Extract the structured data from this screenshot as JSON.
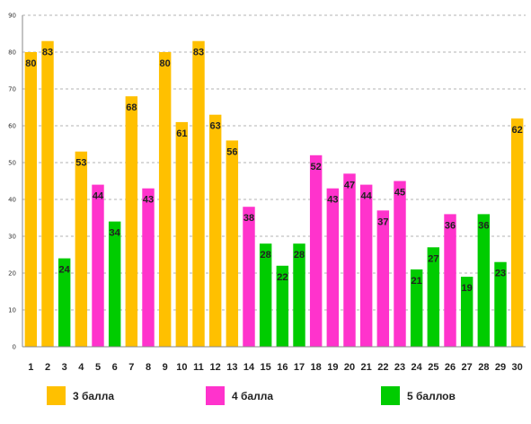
{
  "chart_data": {
    "type": "bar",
    "categories": [
      "1",
      "2",
      "3",
      "4",
      "5",
      "6",
      "7",
      "8",
      "9",
      "10",
      "11",
      "12",
      "13",
      "14",
      "15",
      "16",
      "17",
      "18",
      "19",
      "20",
      "21",
      "22",
      "23",
      "24",
      "25",
      "26",
      "27",
      "28",
      "29",
      "30"
    ],
    "values": [
      80,
      83,
      24,
      53,
      44,
      34,
      68,
      43,
      80,
      61,
      83,
      63,
      56,
      38,
      28,
      22,
      28,
      52,
      43,
      47,
      44,
      37,
      45,
      21,
      27,
      36,
      19,
      36,
      23,
      62
    ],
    "grades": [
      "3",
      "3",
      "5",
      "3",
      "4",
      "5",
      "3",
      "4",
      "3",
      "3",
      "3",
      "3",
      "3",
      "4",
      "5",
      "5",
      "5",
      "4",
      "4",
      "4",
      "4",
      "4",
      "4",
      "5",
      "5",
      "4",
      "5",
      "5",
      "5",
      "3"
    ],
    "ylim": [
      0,
      90
    ],
    "yticks": [
      0,
      10,
      20,
      30,
      40,
      50,
      60,
      70,
      80,
      90
    ],
    "grid": true,
    "legend_position": "bottom",
    "legend": [
      {
        "key": "3",
        "label": "3 балла",
        "color": "#FFC000"
      },
      {
        "key": "4",
        "label": "4 балла",
        "color": "#FF33CC"
      },
      {
        "key": "5",
        "label": "5 баллов",
        "color": "#00CC00"
      }
    ]
  }
}
